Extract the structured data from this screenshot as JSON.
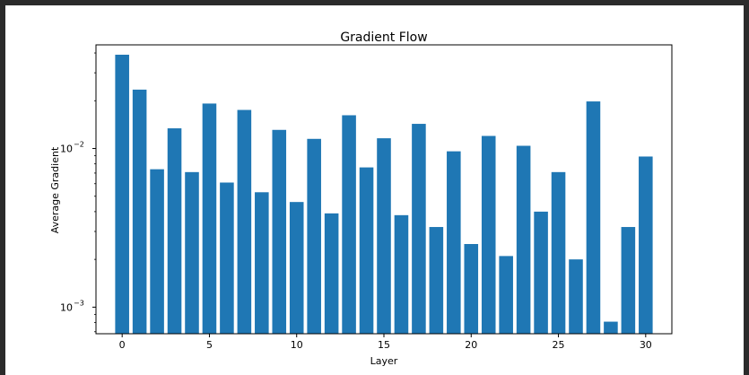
{
  "chart_data": {
    "type": "bar",
    "title": "Gradient Flow",
    "xlabel": "Layer",
    "ylabel": "Average Gradient",
    "yscale": "log",
    "ylim": [
      0.00068,
      0.045
    ],
    "xlim": [
      -1.5,
      31.5
    ],
    "grid": false,
    "color": "#1f77b4",
    "x": [
      0,
      1,
      2,
      3,
      4,
      5,
      6,
      7,
      8,
      9,
      10,
      11,
      12,
      13,
      14,
      15,
      16,
      17,
      18,
      19,
      20,
      21,
      22,
      23,
      24,
      25,
      26,
      27,
      28,
      29,
      30
    ],
    "values": [
      0.039,
      0.0235,
      0.0074,
      0.0134,
      0.0071,
      0.0192,
      0.0061,
      0.0175,
      0.0053,
      0.0131,
      0.0046,
      0.0115,
      0.0039,
      0.0162,
      0.0076,
      0.0116,
      0.0038,
      0.0143,
      0.0032,
      0.0096,
      0.0025,
      0.012,
      0.0021,
      0.0104,
      0.004,
      0.0071,
      0.002,
      0.0198,
      0.00081,
      0.0032,
      0.0089
    ],
    "x_ticks": [
      0,
      5,
      10,
      15,
      20,
      25,
      30
    ],
    "x_tick_labels": [
      "0",
      "5",
      "10",
      "15",
      "20",
      "25",
      "30"
    ],
    "y_major_ticks": [
      0.001,
      0.01
    ],
    "y_major_tick_bases": [
      "10",
      "10"
    ],
    "y_major_tick_exponents": [
      "−3",
      "−2"
    ]
  }
}
